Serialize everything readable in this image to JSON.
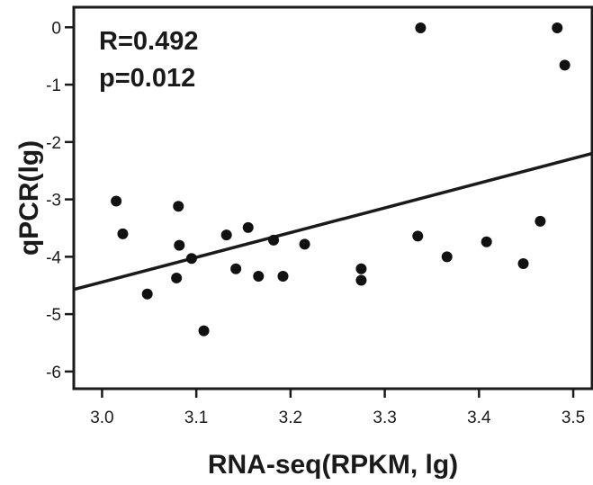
{
  "chart_data": {
    "type": "scatter",
    "title": "",
    "xlabel": "RNA-seq(RPKM, lg)",
    "ylabel": "qPCR(lg)",
    "xlim": [
      2.97,
      3.52
    ],
    "ylim": [
      -6.3,
      0.35
    ],
    "xticks": [
      3.0,
      3.1,
      3.2,
      3.3,
      3.4,
      3.5
    ],
    "xtick_labels": [
      "3.0",
      "3.1",
      "3.2",
      "3.3",
      "3.4",
      "3.5"
    ],
    "yticks": [
      0,
      -1,
      -2,
      -3,
      -4,
      -5,
      -6
    ],
    "ytick_labels": [
      "0",
      "-1",
      "-2",
      "-3",
      "-4",
      "-5",
      "-6"
    ],
    "grid": false,
    "annotations": [
      "R=0.492",
      "p=0.012"
    ],
    "regression_line": {
      "x": [
        2.97,
        3.52
      ],
      "y": [
        -4.57,
        -2.2
      ]
    },
    "points": [
      {
        "x": 3.015,
        "y": -3.03
      },
      {
        "x": 3.022,
        "y": -3.6
      },
      {
        "x": 3.048,
        "y": -4.65
      },
      {
        "x": 3.079,
        "y": -4.37
      },
      {
        "x": 3.081,
        "y": -3.12
      },
      {
        "x": 3.082,
        "y": -3.8
      },
      {
        "x": 3.095,
        "y": -4.03
      },
      {
        "x": 3.108,
        "y": -5.29
      },
      {
        "x": 3.132,
        "y": -3.62
      },
      {
        "x": 3.142,
        "y": -4.21
      },
      {
        "x": 3.155,
        "y": -3.49
      },
      {
        "x": 3.166,
        "y": -4.34
      },
      {
        "x": 3.182,
        "y": -3.71
      },
      {
        "x": 3.192,
        "y": -4.34
      },
      {
        "x": 3.215,
        "y": -3.78
      },
      {
        "x": 3.275,
        "y": -4.21
      },
      {
        "x": 3.275,
        "y": -4.41
      },
      {
        "x": 3.335,
        "y": -3.64
      },
      {
        "x": 3.338,
        "y": -0.01
      },
      {
        "x": 3.366,
        "y": -4.0
      },
      {
        "x": 3.408,
        "y": -3.74
      },
      {
        "x": 3.447,
        "y": -4.12
      },
      {
        "x": 3.465,
        "y": -3.38
      },
      {
        "x": 3.483,
        "y": -0.01
      },
      {
        "x": 3.491,
        "y": -0.66
      }
    ]
  }
}
